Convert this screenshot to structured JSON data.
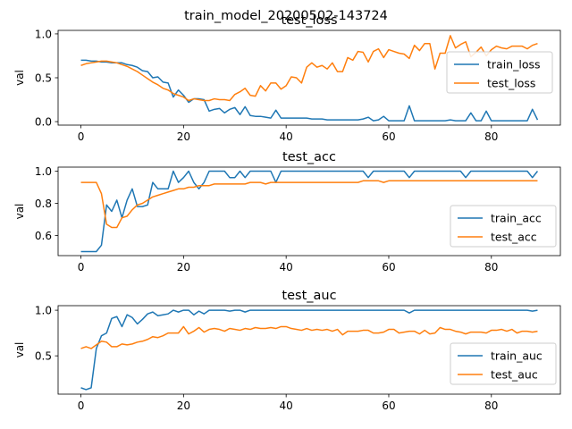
{
  "figure": {
    "suptitle": "train_model_20200502-143724"
  },
  "colors": {
    "train": "#1f77b4",
    "test": "#ff7f0e"
  },
  "chart_data": [
    {
      "type": "line",
      "title": "test_loss",
      "xlabel": "",
      "ylabel": "val",
      "xlim": [
        -4.45,
        93.45
      ],
      "ylim": [
        -0.04,
        1.04
      ],
      "xticks": [
        0,
        20,
        40,
        60,
        80
      ],
      "yticks": [
        0.0,
        0.5,
        1.0
      ],
      "ytick_labels": [
        "0.0",
        "0.5",
        "1.0"
      ],
      "legend": "center-right",
      "x": [
        0,
        1,
        2,
        3,
        4,
        5,
        6,
        7,
        8,
        9,
        10,
        11,
        12,
        13,
        14,
        15,
        16,
        17,
        18,
        19,
        20,
        21,
        22,
        23,
        24,
        25,
        26,
        27,
        28,
        29,
        30,
        31,
        32,
        33,
        34,
        35,
        36,
        37,
        38,
        39,
        40,
        41,
        42,
        43,
        44,
        45,
        46,
        47,
        48,
        49,
        50,
        51,
        52,
        53,
        54,
        55,
        56,
        57,
        58,
        59,
        60,
        61,
        62,
        63,
        64,
        65,
        66,
        67,
        68,
        69,
        70,
        71,
        72,
        73,
        74,
        75,
        76,
        77,
        78,
        79,
        80,
        81,
        82,
        83,
        84,
        85,
        86,
        87,
        88,
        89
      ],
      "series": [
        {
          "name": "train_loss",
          "color": "#1f77b4",
          "values": [
            0.7,
            0.7,
            0.69,
            0.69,
            0.68,
            0.68,
            0.67,
            0.67,
            0.67,
            0.65,
            0.64,
            0.62,
            0.58,
            0.57,
            0.5,
            0.51,
            0.45,
            0.44,
            0.28,
            0.36,
            0.3,
            0.22,
            0.26,
            0.26,
            0.25,
            0.12,
            0.14,
            0.15,
            0.1,
            0.14,
            0.16,
            0.08,
            0.17,
            0.07,
            0.06,
            0.06,
            0.05,
            0.04,
            0.13,
            0.04,
            0.04,
            0.04,
            0.04,
            0.04,
            0.04,
            0.03,
            0.03,
            0.03,
            0.02,
            0.02,
            0.02,
            0.02,
            0.02,
            0.02,
            0.02,
            0.03,
            0.05,
            0.01,
            0.02,
            0.06,
            0.01,
            0.01,
            0.01,
            0.01,
            0.18,
            0.01,
            0.01,
            0.01,
            0.01,
            0.01,
            0.01,
            0.01,
            0.02,
            0.01,
            0.01,
            0.01,
            0.1,
            0.01,
            0.01,
            0.12,
            0.01,
            0.01,
            0.01,
            0.01,
            0.01,
            0.01,
            0.01,
            0.01,
            0.14,
            0.02
          ]
        },
        {
          "name": "test_loss",
          "color": "#ff7f0e",
          "values": [
            0.64,
            0.66,
            0.67,
            0.68,
            0.69,
            0.69,
            0.68,
            0.67,
            0.65,
            0.63,
            0.6,
            0.57,
            0.53,
            0.49,
            0.45,
            0.42,
            0.38,
            0.36,
            0.32,
            0.3,
            0.28,
            0.24,
            0.26,
            0.25,
            0.24,
            0.24,
            0.26,
            0.25,
            0.25,
            0.24,
            0.31,
            0.34,
            0.38,
            0.3,
            0.29,
            0.41,
            0.35,
            0.44,
            0.44,
            0.37,
            0.41,
            0.51,
            0.5,
            0.44,
            0.62,
            0.67,
            0.62,
            0.64,
            0.6,
            0.67,
            0.57,
            0.57,
            0.73,
            0.7,
            0.8,
            0.79,
            0.68,
            0.8,
            0.83,
            0.73,
            0.82,
            0.8,
            0.78,
            0.77,
            0.72,
            0.87,
            0.81,
            0.89,
            0.89,
            0.6,
            0.78,
            0.78,
            0.98,
            0.84,
            0.88,
            0.91,
            0.74,
            0.79,
            0.85,
            0.75,
            0.82,
            0.86,
            0.84,
            0.83,
            0.86,
            0.86,
            0.86,
            0.83,
            0.87,
            0.89
          ]
        }
      ]
    },
    {
      "type": "line",
      "title": "test_acc",
      "xlabel": "",
      "ylabel": "val",
      "xlim": [
        -4.45,
        93.45
      ],
      "ylim": [
        0.475,
        1.025
      ],
      "xticks": [
        0,
        20,
        40,
        60,
        80
      ],
      "yticks": [
        0.6,
        0.8,
        1.0
      ],
      "ytick_labels": [
        "0.6",
        "0.8",
        "1.0"
      ],
      "legend": "lower-right",
      "x": [
        0,
        1,
        2,
        3,
        4,
        5,
        6,
        7,
        8,
        9,
        10,
        11,
        12,
        13,
        14,
        15,
        16,
        17,
        18,
        19,
        20,
        21,
        22,
        23,
        24,
        25,
        26,
        27,
        28,
        29,
        30,
        31,
        32,
        33,
        34,
        35,
        36,
        37,
        38,
        39,
        40,
        41,
        42,
        43,
        44,
        45,
        46,
        47,
        48,
        49,
        50,
        51,
        52,
        53,
        54,
        55,
        56,
        57,
        58,
        59,
        60,
        61,
        62,
        63,
        64,
        65,
        66,
        67,
        68,
        69,
        70,
        71,
        72,
        73,
        74,
        75,
        76,
        77,
        78,
        79,
        80,
        81,
        82,
        83,
        84,
        85,
        86,
        87,
        88,
        89
      ],
      "series": [
        {
          "name": "train_acc",
          "color": "#1f77b4",
          "values": [
            0.5,
            0.5,
            0.5,
            0.5,
            0.54,
            0.79,
            0.75,
            0.82,
            0.71,
            0.82,
            0.89,
            0.78,
            0.78,
            0.79,
            0.93,
            0.89,
            0.89,
            0.89,
            1.0,
            0.93,
            0.96,
            1.0,
            0.93,
            0.89,
            0.93,
            1.0,
            1.0,
            1.0,
            1.0,
            0.96,
            0.96,
            1.0,
            0.96,
            1.0,
            1.0,
            1.0,
            1.0,
            1.0,
            0.93,
            1.0,
            1.0,
            1.0,
            1.0,
            1.0,
            1.0,
            1.0,
            1.0,
            1.0,
            1.0,
            1.0,
            1.0,
            1.0,
            1.0,
            1.0,
            1.0,
            1.0,
            0.96,
            1.0,
            1.0,
            1.0,
            1.0,
            1.0,
            1.0,
            1.0,
            0.96,
            1.0,
            1.0,
            1.0,
            1.0,
            1.0,
            1.0,
            1.0,
            1.0,
            1.0,
            1.0,
            0.96,
            1.0,
            1.0,
            1.0,
            1.0,
            1.0,
            1.0,
            1.0,
            1.0,
            1.0,
            1.0,
            1.0,
            1.0,
            0.96,
            1.0
          ]
        },
        {
          "name": "test_acc",
          "color": "#ff7f0e",
          "values": [
            0.93,
            0.93,
            0.93,
            0.93,
            0.86,
            0.67,
            0.65,
            0.65,
            0.71,
            0.72,
            0.76,
            0.79,
            0.8,
            0.82,
            0.84,
            0.85,
            0.86,
            0.87,
            0.88,
            0.89,
            0.89,
            0.9,
            0.9,
            0.91,
            0.91,
            0.91,
            0.92,
            0.92,
            0.92,
            0.92,
            0.92,
            0.92,
            0.92,
            0.93,
            0.93,
            0.93,
            0.92,
            0.93,
            0.93,
            0.93,
            0.93,
            0.93,
            0.93,
            0.93,
            0.93,
            0.93,
            0.93,
            0.93,
            0.93,
            0.93,
            0.93,
            0.93,
            0.93,
            0.93,
            0.93,
            0.94,
            0.94,
            0.94,
            0.94,
            0.93,
            0.94,
            0.94,
            0.94,
            0.94,
            0.94,
            0.94,
            0.94,
            0.94,
            0.94,
            0.94,
            0.94,
            0.94,
            0.94,
            0.94,
            0.94,
            0.94,
            0.94,
            0.94,
            0.94,
            0.94,
            0.94,
            0.94,
            0.94,
            0.94,
            0.94,
            0.94,
            0.94,
            0.94,
            0.94,
            0.94
          ]
        }
      ]
    },
    {
      "type": "line",
      "title": "test_auc",
      "xlabel": "",
      "ylabel": "val",
      "xlim": [
        -4.45,
        93.45
      ],
      "ylim": [
        0.08,
        1.05
      ],
      "xticks": [
        0,
        20,
        40,
        60,
        80
      ],
      "yticks": [
        0.5,
        1.0
      ],
      "ytick_labels": [
        "0.5",
        "1.0"
      ],
      "legend": "lower-right",
      "x": [
        0,
        1,
        2,
        3,
        4,
        5,
        6,
        7,
        8,
        9,
        10,
        11,
        12,
        13,
        14,
        15,
        16,
        17,
        18,
        19,
        20,
        21,
        22,
        23,
        24,
        25,
        26,
        27,
        28,
        29,
        30,
        31,
        32,
        33,
        34,
        35,
        36,
        37,
        38,
        39,
        40,
        41,
        42,
        43,
        44,
        45,
        46,
        47,
        48,
        49,
        50,
        51,
        52,
        53,
        54,
        55,
        56,
        57,
        58,
        59,
        60,
        61,
        62,
        63,
        64,
        65,
        66,
        67,
        68,
        69,
        70,
        71,
        72,
        73,
        74,
        75,
        76,
        77,
        78,
        79,
        80,
        81,
        82,
        83,
        84,
        85,
        86,
        87,
        88,
        89
      ],
      "series": [
        {
          "name": "train_auc",
          "color": "#1f77b4",
          "values": [
            0.15,
            0.13,
            0.15,
            0.58,
            0.72,
            0.75,
            0.91,
            0.93,
            0.82,
            0.95,
            0.92,
            0.85,
            0.9,
            0.96,
            0.98,
            0.94,
            0.95,
            0.96,
            1.0,
            0.98,
            1.0,
            1.0,
            0.95,
            0.99,
            0.96,
            1.0,
            1.0,
            1.0,
            1.0,
            0.99,
            1.0,
            1.0,
            0.98,
            1.0,
            1.0,
            1.0,
            1.0,
            1.0,
            1.0,
            1.0,
            1.0,
            1.0,
            1.0,
            1.0,
            1.0,
            1.0,
            1.0,
            1.0,
            1.0,
            1.0,
            1.0,
            1.0,
            1.0,
            1.0,
            1.0,
            1.0,
            1.0,
            1.0,
            1.0,
            1.0,
            1.0,
            1.0,
            1.0,
            1.0,
            0.97,
            1.0,
            1.0,
            1.0,
            1.0,
            1.0,
            1.0,
            1.0,
            1.0,
            1.0,
            1.0,
            1.0,
            1.0,
            1.0,
            1.0,
            1.0,
            1.0,
            1.0,
            1.0,
            1.0,
            1.0,
            1.0,
            1.0,
            1.0,
            0.99,
            1.0
          ]
        },
        {
          "name": "test_auc",
          "color": "#ff7f0e",
          "values": [
            0.58,
            0.6,
            0.58,
            0.62,
            0.66,
            0.65,
            0.6,
            0.6,
            0.63,
            0.62,
            0.63,
            0.65,
            0.66,
            0.68,
            0.71,
            0.7,
            0.72,
            0.75,
            0.75,
            0.75,
            0.82,
            0.74,
            0.77,
            0.81,
            0.76,
            0.79,
            0.8,
            0.79,
            0.77,
            0.8,
            0.79,
            0.78,
            0.8,
            0.79,
            0.81,
            0.8,
            0.8,
            0.81,
            0.8,
            0.82,
            0.82,
            0.8,
            0.79,
            0.78,
            0.8,
            0.78,
            0.79,
            0.78,
            0.79,
            0.77,
            0.79,
            0.73,
            0.77,
            0.77,
            0.77,
            0.78,
            0.78,
            0.75,
            0.75,
            0.76,
            0.79,
            0.79,
            0.75,
            0.76,
            0.77,
            0.77,
            0.74,
            0.78,
            0.74,
            0.75,
            0.81,
            0.79,
            0.79,
            0.77,
            0.76,
            0.74,
            0.76,
            0.76,
            0.76,
            0.75,
            0.78,
            0.78,
            0.79,
            0.77,
            0.79,
            0.75,
            0.77,
            0.77,
            0.76,
            0.77
          ]
        }
      ]
    }
  ]
}
